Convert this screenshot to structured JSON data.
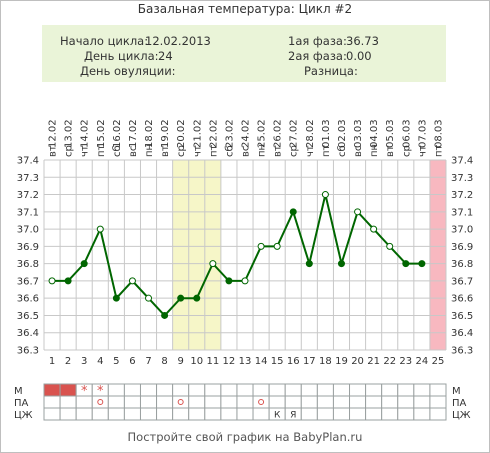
{
  "title": "Базальная температура: Цикл #2",
  "info": {
    "cycle_start_label": "Начало цикла:",
    "cycle_start_value": "12.02.2013",
    "cycle_day_label": "День цикла:",
    "cycle_day_value": "24",
    "ovulation_day_label": "День овуляции:",
    "ovulation_day_value": "",
    "phase1_label": "1ая фаза:",
    "phase1_value": "36.73",
    "phase2_label": "2ая фаза:",
    "phase2_value": "0.00",
    "difference_label": "Разница:",
    "difference_value": ""
  },
  "footer": "Постройте свой график на BabyPlan.ru",
  "row_labels": [
    "М",
    "ПА",
    "ЦЖ"
  ],
  "colors": {
    "line": "#006600",
    "marker_fill": "#006600",
    "grid": "#c8c8c8",
    "highlight_yellow": "#f6f6c8",
    "highlight_pink": "#f8b8c0",
    "menstruation": "#d9534f",
    "info_bg": "#eaf4d8"
  },
  "chart_data": {
    "type": "line",
    "title": "Базальная температура: Цикл #2",
    "dates": [
      "12.02",
      "13.02",
      "14.02",
      "15.02",
      "16.02",
      "17.02",
      "18.02",
      "19.02",
      "20.02",
      "21.02",
      "22.02",
      "23.02",
      "24.02",
      "25.02",
      "26.02",
      "27.02",
      "28.02",
      "01.03",
      "02.03",
      "03.03",
      "04.03",
      "05.03",
      "06.03",
      "07.03",
      "08.03"
    ],
    "weekdays": [
      "вт",
      "ср",
      "чт",
      "пт",
      "сб",
      "вс",
      "пн",
      "вт",
      "ср",
      "чт",
      "пт",
      "сб",
      "вс",
      "пн",
      "вт",
      "ср",
      "чт",
      "пт",
      "сб",
      "вс",
      "пн",
      "вт",
      "ср",
      "чт",
      "пт"
    ],
    "days": [
      1,
      2,
      3,
      4,
      5,
      6,
      7,
      8,
      9,
      10,
      11,
      12,
      13,
      14,
      15,
      16,
      17,
      18,
      19,
      20,
      21,
      22,
      23,
      24,
      25
    ],
    "temperatures": [
      36.7,
      36.7,
      36.8,
      37.0,
      36.6,
      36.7,
      36.6,
      36.5,
      36.6,
      36.6,
      36.8,
      36.7,
      36.7,
      36.9,
      36.9,
      37.1,
      36.8,
      37.2,
      36.8,
      37.1,
      37.0,
      36.9,
      36.8,
      36.8,
      null
    ],
    "filled_markers": [
      false,
      true,
      true,
      false,
      true,
      false,
      false,
      true,
      true,
      true,
      false,
      true,
      false,
      false,
      false,
      true,
      true,
      false,
      true,
      false,
      false,
      false,
      true,
      true,
      false
    ],
    "ylim": [
      36.3,
      37.4
    ],
    "yticks": [
      "36.3",
      "36.4",
      "36.5",
      "36.6",
      "36.7",
      "36.8",
      "36.9",
      "37.0",
      "37.1",
      "37.2",
      "37.3",
      "37.4"
    ],
    "highlight_days_yellow": [
      9,
      10,
      11
    ],
    "highlight_day_pink": 25,
    "grid": true,
    "menstruation": [
      "bar",
      "bar",
      "*",
      "*",
      "",
      "",
      "",
      "",
      "",
      "",
      "",
      "",
      "",
      "",
      "",
      "",
      "",
      "",
      "",
      "",
      "",
      "",
      "",
      "",
      ""
    ],
    "pa": [
      "",
      "",
      "",
      "o",
      "",
      "",
      "",
      "",
      "o",
      "",
      "",
      "",
      "",
      "o",
      "",
      "",
      "",
      "",
      "",
      "",
      "",
      "",
      "",
      "",
      ""
    ],
    "czh": [
      "",
      "",
      "",
      "",
      "",
      "",
      "",
      "",
      "",
      "",
      "",
      "",
      "",
      "",
      "К",
      "Я",
      "",
      "",
      "",
      "",
      "",
      "",
      "",
      "",
      ""
    ]
  }
}
